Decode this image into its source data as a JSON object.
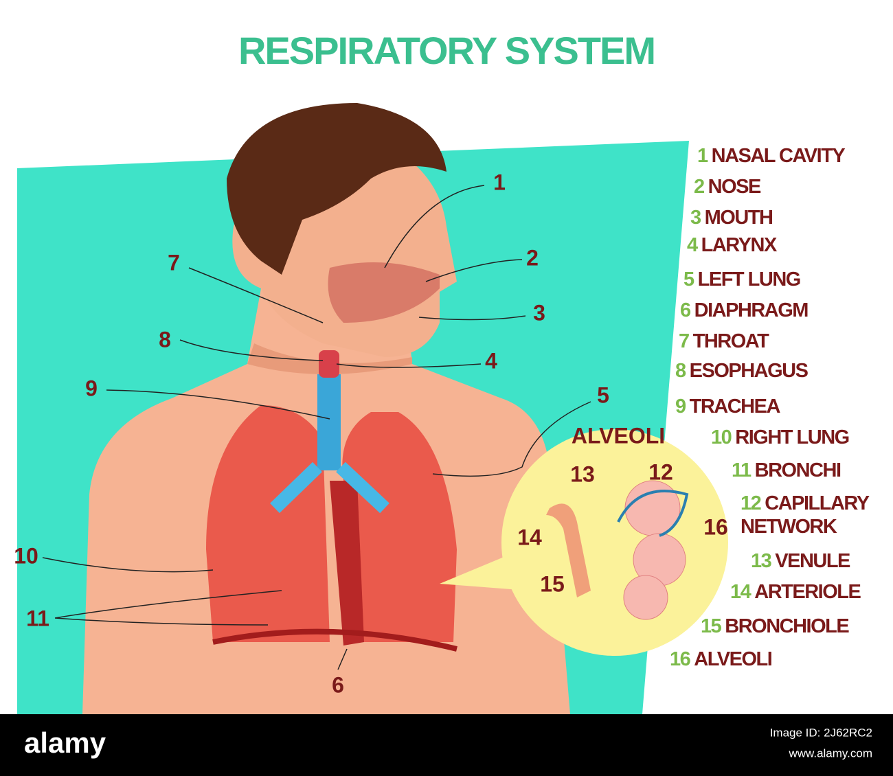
{
  "title": "RESPIRATORY SYSTEM",
  "legend": [
    {
      "number": "1",
      "label": "NASAL CAVITY"
    },
    {
      "number": "2",
      "label": "NOSE"
    },
    {
      "number": "3",
      "label": "MOUTH"
    },
    {
      "number": "4",
      "label": "LARYNX"
    },
    {
      "number": "5",
      "label": "LEFT LUNG"
    },
    {
      "number": "6",
      "label": "DIAPHRAGM"
    },
    {
      "number": "7",
      "label": "THROAT"
    },
    {
      "number": "8",
      "label": "ESOPHAGUS"
    },
    {
      "number": "9",
      "label": "TRACHEA"
    },
    {
      "number": "10",
      "label": "RIGHT LUNG"
    },
    {
      "number": "11",
      "label": "BRONCHI"
    },
    {
      "number": "12",
      "label": "CAPILLARY NETWORK"
    },
    {
      "number": "13",
      "label": "VENULE"
    },
    {
      "number": "14",
      "label": "ARTERIOLE"
    },
    {
      "number": "15",
      "label": "BRONCHIOLE"
    },
    {
      "number": "16",
      "label": "ALVEOLI"
    }
  ],
  "callouts": [
    "1",
    "2",
    "3",
    "4",
    "5",
    "6",
    "7",
    "8",
    "9",
    "10",
    "11"
  ],
  "inset": {
    "title": "ALVEOLI",
    "callouts": [
      "13",
      "12",
      "14",
      "15",
      "16"
    ]
  },
  "footer": {
    "brand": "alamy",
    "image_id": "Image ID: 2J62RC2",
    "url": "www.alamy.com"
  }
}
